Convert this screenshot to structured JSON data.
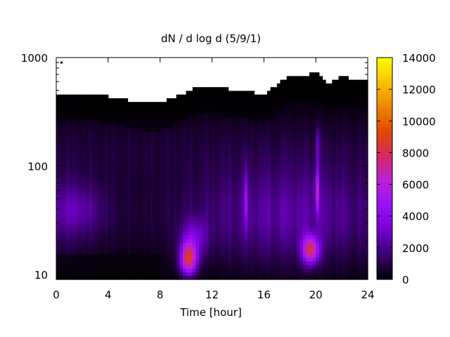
{
  "chart_data": {
    "type": "heatmap",
    "title": "dN / d log d (5/9/1)",
    "xlabel": "Time [hour]",
    "ylabel": "",
    "x_range": [
      0,
      24
    ],
    "y_range": [
      9,
      1000
    ],
    "y_scale": "log",
    "x_ticks": [
      {
        "value": 0,
        "label": "0"
      },
      {
        "value": 4,
        "label": "4"
      },
      {
        "value": 8,
        "label": "8"
      },
      {
        "value": 12,
        "label": "12"
      },
      {
        "value": 16,
        "label": "16"
      },
      {
        "value": 20,
        "label": "20"
      },
      {
        "value": 24,
        "label": "24"
      }
    ],
    "y_ticks": [
      {
        "value": 10,
        "label": "10"
      },
      {
        "value": 100,
        "label": "100"
      },
      {
        "value": 1000,
        "label": "1000"
      }
    ],
    "colorbar": {
      "range": [
        0,
        14000
      ],
      "ticks": [
        {
          "value": 0,
          "label": "0"
        },
        {
          "value": 2000,
          "label": "2000"
        },
        {
          "value": 4000,
          "label": "4000"
        },
        {
          "value": 6000,
          "label": "6000"
        },
        {
          "value": 8000,
          "label": "8000"
        },
        {
          "value": 10000,
          "label": "10000"
        },
        {
          "value": 12000,
          "label": "12000"
        },
        {
          "value": 14000,
          "label": "14000"
        }
      ],
      "palette": [
        "#000000",
        "#3a006e",
        "#7400d0",
        "#9a10f5",
        "#bd20d8",
        "#d32a62",
        "#e04800",
        "#ef8600",
        "#f8c200",
        "#ffff00"
      ]
    },
    "grid": false,
    "legend": "colorbar-right",
    "upper_cutoff_diameter": [
      [
        0,
        470
      ],
      [
        1,
        460
      ],
      [
        2,
        470
      ],
      [
        3,
        460
      ],
      [
        4,
        440
      ],
      [
        5,
        420
      ],
      [
        6,
        395
      ],
      [
        7,
        380
      ],
      [
        8,
        385
      ],
      [
        9,
        420
      ],
      [
        10,
        480
      ],
      [
        11,
        540
      ],
      [
        12,
        540
      ],
      [
        13,
        520
      ],
      [
        14,
        500
      ],
      [
        15,
        480
      ],
      [
        16,
        440
      ],
      [
        17,
        560
      ],
      [
        18,
        700
      ],
      [
        19,
        680
      ],
      [
        20,
        730
      ],
      [
        21,
        580
      ],
      [
        22,
        670
      ],
      [
        23,
        620
      ],
      [
        24,
        600
      ]
    ],
    "features": [
      {
        "time": 10.2,
        "diameter": 14,
        "value": 9800
      },
      {
        "time": 19.6,
        "diameter": 17,
        "value": 9000
      },
      {
        "time": 20.1,
        "diameter": 60,
        "value": 7000
      },
      {
        "time": 14.6,
        "diameter": 50,
        "value": 3800
      },
      {
        "time": 1.5,
        "diameter": 40,
        "value": 3600
      },
      {
        "time": 0.4,
        "diameter": 900,
        "value": 0
      }
    ]
  }
}
